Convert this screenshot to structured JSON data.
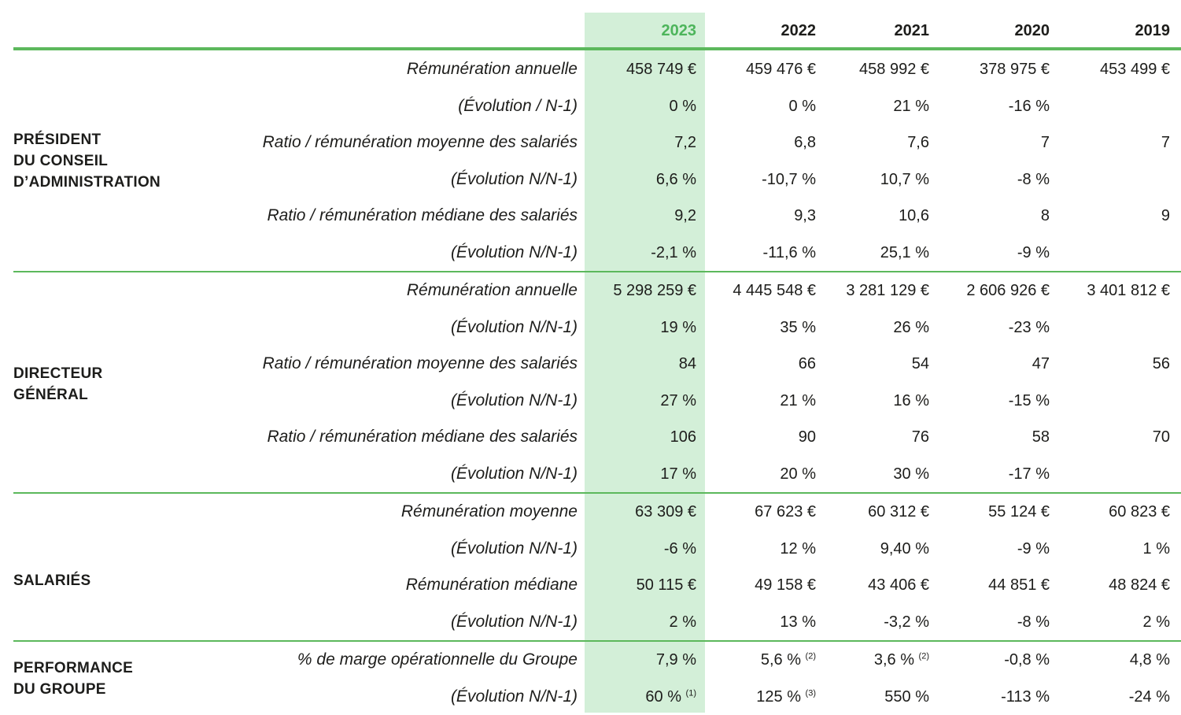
{
  "years": [
    "2023",
    "2022",
    "2021",
    "2020",
    "2019"
  ],
  "groups": [
    {
      "label": "PRÉSIDENT\nDU CONSEIL\nD’ADMINISTRATION",
      "rows": [
        {
          "label": "Rémunération annuelle",
          "values": [
            "458 749 €",
            "459 476 €",
            "458 992 €",
            "378 975 €",
            "453 499 €"
          ],
          "notes": [
            "",
            "",
            "",
            "",
            ""
          ]
        },
        {
          "label": "(Évolution / N-1)",
          "values": [
            "0 %",
            "0 %",
            "21 %",
            "-16 %",
            ""
          ],
          "notes": [
            "",
            "",
            "",
            "",
            ""
          ]
        },
        {
          "label": "Ratio / rémunération moyenne des salariés",
          "values": [
            "7,2",
            "6,8",
            "7,6",
            "7",
            "7"
          ],
          "notes": [
            "",
            "",
            "",
            "",
            ""
          ]
        },
        {
          "label": "(Évolution N/N-1)",
          "values": [
            "6,6 %",
            "-10,7 %",
            "10,7 %",
            "-8 %",
            ""
          ],
          "notes": [
            "",
            "",
            "",
            "",
            ""
          ]
        },
        {
          "label": "Ratio / rémunération médiane des salariés",
          "values": [
            "9,2",
            "9,3",
            "10,6",
            "8",
            "9"
          ],
          "notes": [
            "",
            "",
            "",
            "",
            ""
          ]
        },
        {
          "label": "(Évolution N/N-1)",
          "values": [
            "-2,1 %",
            "-11,6 %",
            "25,1 %",
            "-9 %",
            ""
          ],
          "notes": [
            "",
            "",
            "",
            "",
            ""
          ]
        }
      ]
    },
    {
      "label": "DIRECTEUR\nGÉNÉRAL",
      "rows": [
        {
          "label": "Rémunération annuelle",
          "values": [
            "5 298 259 €",
            "4 445 548 €",
            "3 281 129 €",
            "2 606 926 €",
            "3 401 812 €"
          ],
          "notes": [
            "",
            "",
            "",
            "",
            ""
          ]
        },
        {
          "label": "(Évolution N/N-1)",
          "values": [
            "19 %",
            "35 %",
            "26 %",
            "-23 %",
            ""
          ],
          "notes": [
            "",
            "",
            "",
            "",
            ""
          ]
        },
        {
          "label": "Ratio / rémunération moyenne des salariés",
          "values": [
            "84",
            "66",
            "54",
            "47",
            "56"
          ],
          "notes": [
            "",
            "",
            "",
            "",
            ""
          ]
        },
        {
          "label": "(Évolution N/N-1)",
          "values": [
            "27 %",
            "21 %",
            "16 %",
            "-15 %",
            ""
          ],
          "notes": [
            "",
            "",
            "",
            "",
            ""
          ]
        },
        {
          "label": "Ratio / rémunération médiane des salariés",
          "values": [
            "106",
            "90",
            "76",
            "58",
            "70"
          ],
          "notes": [
            "",
            "",
            "",
            "",
            ""
          ]
        },
        {
          "label": "(Évolution N/N-1)",
          "values": [
            "17 %",
            "20 %",
            "30 %",
            "-17 %",
            ""
          ],
          "notes": [
            "",
            "",
            "",
            "",
            ""
          ]
        }
      ]
    },
    {
      "label": "SALARIÉS",
      "rows": [
        {
          "label": "Rémunération moyenne",
          "values": [
            "63 309 €",
            "67 623 €",
            "60 312 €",
            "55 124 €",
            "60 823 €"
          ],
          "notes": [
            "",
            "",
            "",
            "",
            ""
          ]
        },
        {
          "label": "(Évolution N/N-1)",
          "values": [
            "-6 %",
            "12 %",
            "9,40 %",
            "-9 %",
            "1 %"
          ],
          "notes": [
            "",
            "",
            "",
            "",
            ""
          ]
        },
        {
          "label": "Rémunération médiane",
          "values": [
            "50 115 €",
            "49 158 €",
            "43 406 €",
            "44 851 €",
            "48 824 €"
          ],
          "notes": [
            "",
            "",
            "",
            "",
            ""
          ]
        },
        {
          "label": "(Évolution N/N-1)",
          "values": [
            "2 %",
            "13 %",
            "-3,2 %",
            "-8 %",
            "2 %"
          ],
          "notes": [
            "",
            "",
            "",
            "",
            ""
          ]
        }
      ]
    },
    {
      "label": "PERFORMANCE\nDU GROUPE",
      "rows": [
        {
          "label": "% de marge opérationnelle du Groupe",
          "values": [
            "7,9 %",
            "5,6 %",
            "3,6 %",
            "-0,8 %",
            "4,8 %"
          ],
          "notes": [
            "",
            "(2)",
            "(2)",
            "",
            ""
          ]
        },
        {
          "label": "(Évolution N/N-1)",
          "values": [
            "60 %",
            "125 %",
            "550 %",
            "-113 %",
            "-24 %"
          ],
          "notes": [
            "(1)",
            "(3)",
            "",
            "",
            ""
          ]
        }
      ]
    }
  ],
  "colors": {
    "accent": "#5cb85c",
    "highlight": "#d3efd8",
    "current_year": "#4db55b",
    "text": "#1d1d1b"
  }
}
